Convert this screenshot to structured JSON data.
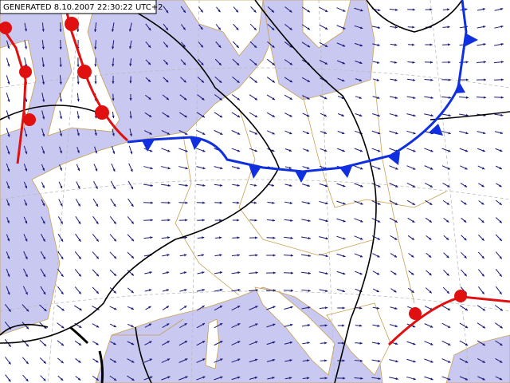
{
  "header": {
    "generated": "GENERATED 8.10.2007 22:30:22 UTC+2"
  }
}
